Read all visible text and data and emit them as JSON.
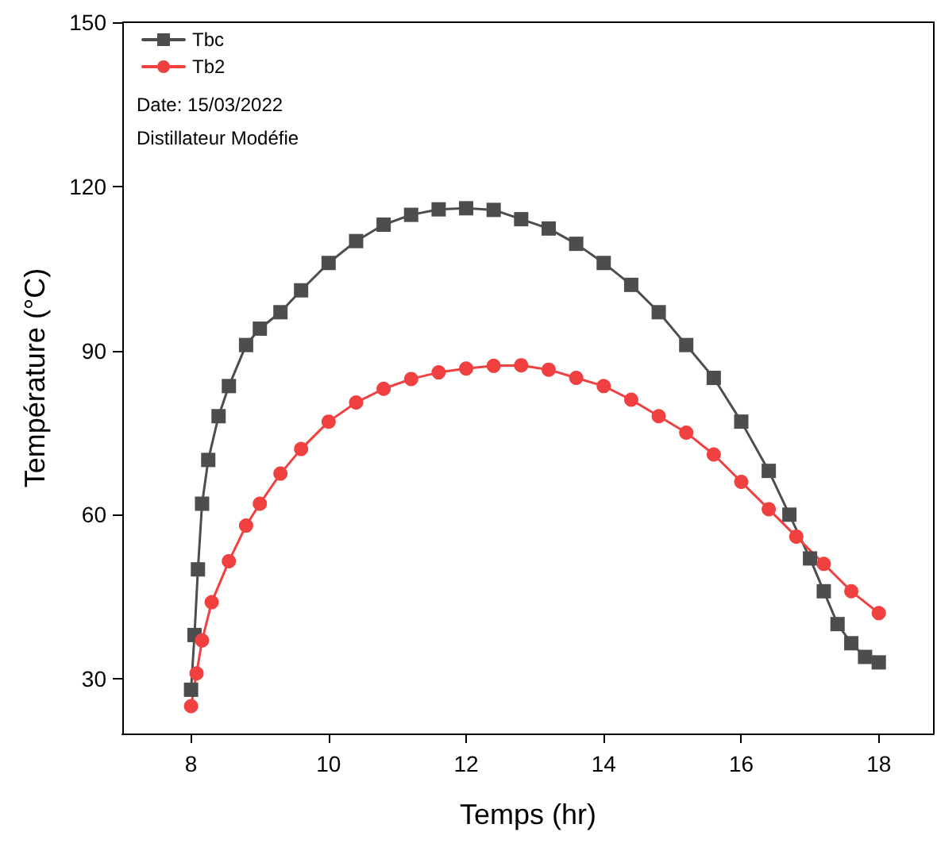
{
  "chart_data": {
    "type": "line",
    "xlabel": "Temps (hr)",
    "ylabel": "Température (°C)",
    "xlim": [
      7,
      18.8
    ],
    "ylim": [
      20,
      150
    ],
    "xticks": [
      8,
      10,
      12,
      14,
      16,
      18
    ],
    "yticks": [
      30,
      60,
      90,
      120,
      150
    ],
    "grid": false,
    "legend": "top left",
    "line_style": "solid",
    "annotations": [
      "Date: 15/03/2022",
      "Distillateur Modéfie"
    ],
    "series": [
      {
        "name": "Tbc",
        "color": "#4d4d4d",
        "marker": "square",
        "x": [
          8.0,
          8.05,
          8.1,
          8.16,
          8.25,
          8.4,
          8.55,
          8.8,
          9.0,
          9.3,
          9.6,
          10.0,
          10.4,
          10.8,
          11.2,
          11.6,
          12.0,
          12.4,
          12.8,
          13.2,
          13.6,
          14.0,
          14.4,
          14.8,
          15.2,
          15.6,
          16.0,
          16.4,
          16.7,
          17.0,
          17.2,
          17.4,
          17.6,
          17.8,
          18.0
        ],
        "values": [
          28,
          38,
          50,
          62,
          70,
          78,
          83.5,
          91,
          94,
          97,
          101,
          106,
          110,
          113,
          114.8,
          115.8,
          116,
          115.7,
          114,
          112.3,
          109.5,
          106,
          102,
          97,
          91,
          85,
          77,
          68,
          60,
          52,
          46,
          40,
          36.5,
          34,
          33
        ]
      },
      {
        "name": "Tb2",
        "color": "#f04040",
        "marker": "circle",
        "x": [
          8.0,
          8.08,
          8.16,
          8.3,
          8.55,
          8.8,
          9.0,
          9.3,
          9.6,
          10.0,
          10.4,
          10.8,
          11.2,
          11.6,
          12.0,
          12.4,
          12.8,
          13.2,
          13.6,
          14.0,
          14.4,
          14.8,
          15.2,
          15.6,
          16.0,
          16.4,
          16.8,
          17.2,
          17.6,
          18.0
        ],
        "values": [
          25,
          31,
          37,
          44,
          51.5,
          58,
          62,
          67.5,
          72,
          77,
          80.5,
          83,
          84.8,
          86,
          86.7,
          87.2,
          87.3,
          86.5,
          85,
          83.5,
          81,
          78,
          75,
          71,
          66,
          61,
          56,
          51,
          46,
          42
        ]
      }
    ]
  }
}
